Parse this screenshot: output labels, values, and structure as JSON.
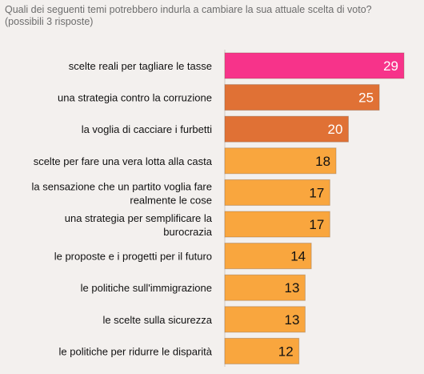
{
  "chart_data": {
    "type": "bar",
    "orientation": "horizontal",
    "title": "Quali dei seguenti temi potrebbero indurla a cambiare la sua attuale scelta di voto?\n(possibili 3 risposte)",
    "categories": [
      "scelte reali per tagliare le tasse",
      "una strategia contro la corruzione",
      "la voglia di cacciare i furbetti",
      "scelte per fare una vera lotta alla casta",
      "la sensazione che un partito voglia fare realmente le cose",
      "una strategia per semplificare la burocrazia",
      "le proposte e i progetti per il futuro",
      "le politiche sull'immigrazione",
      "le scelte sulla sicurezza",
      "le politiche per ridurre le disparità"
    ],
    "values": [
      29,
      25,
      20,
      18,
      17,
      17,
      14,
      13,
      13,
      12
    ],
    "colors": [
      "#f7338a",
      "#e07135",
      "#e07135",
      "#f9a63e",
      "#f9a63e",
      "#f9a63e",
      "#f9a63e",
      "#f9a63e",
      "#f9a63e",
      "#f9a63e"
    ],
    "value_label_colors": [
      "#ffffff",
      "#ffffff",
      "#ffffff",
      "#111111",
      "#111111",
      "#111111",
      "#111111",
      "#111111",
      "#111111",
      "#111111"
    ],
    "xlim": [
      0,
      29
    ],
    "grid": false,
    "legend": "none"
  }
}
